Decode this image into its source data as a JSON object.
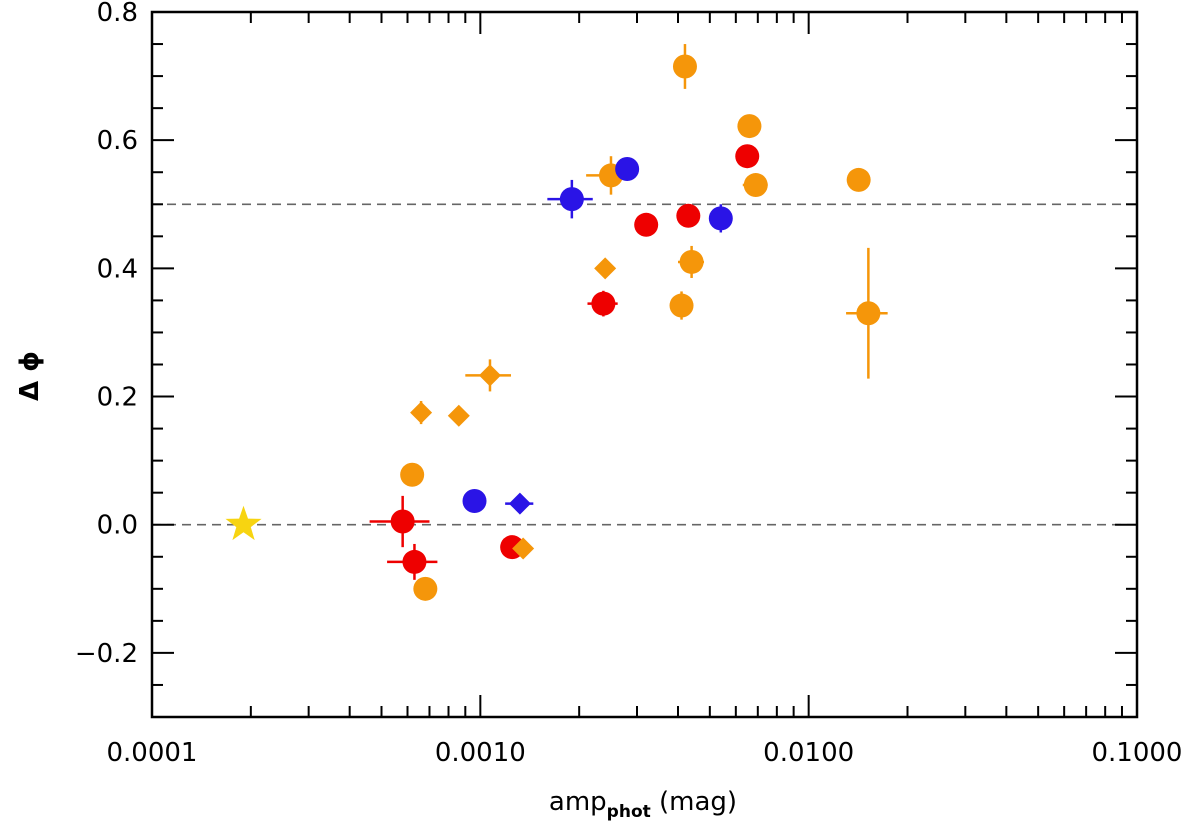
{
  "chart_data": {
    "type": "scatter",
    "xscale": "log",
    "xlim": [
      0.0001,
      0.1
    ],
    "ylim": [
      -0.3,
      0.8
    ],
    "xlabel_main": "amp",
    "xlabel_sub": "phot",
    "xlabel_unit": " (mag)",
    "ylabel": "Δ ϕ",
    "x_ticks": [
      {
        "value": 0.0001,
        "label": "0.0001"
      },
      {
        "value": 0.001,
        "label": "0.0010"
      },
      {
        "value": 0.01,
        "label": "0.0100"
      },
      {
        "value": 0.1,
        "label": "0.1000"
      }
    ],
    "y_ticks": [
      {
        "value": -0.2,
        "label": "−0.2"
      },
      {
        "value": 0.0,
        "label": "0.0"
      },
      {
        "value": 0.2,
        "label": "0.2"
      },
      {
        "value": 0.4,
        "label": "0.4"
      },
      {
        "value": 0.6,
        "label": "0.6"
      },
      {
        "value": 0.8,
        "label": "0.8"
      }
    ],
    "reference_lines": [
      0.0,
      0.5
    ],
    "colors": {
      "red": "#ee0000",
      "orange": "#f5960a",
      "blue": "#2a14e6",
      "star": "#f7d411",
      "refline": "#666666",
      "axis": "#000000"
    },
    "series": [
      {
        "name": "red-circles",
        "color": "red",
        "marker": "circle",
        "points": [
          {
            "x": 0.00058,
            "y": 0.005,
            "xerr": 0.00012,
            "yerr": 0.04
          },
          {
            "x": 0.00063,
            "y": -0.058,
            "xerr": 0.00011,
            "yerr": 0.028
          },
          {
            "x": 0.00125,
            "y": -0.035,
            "xerr": 5e-05,
            "yerr": 0.0
          },
          {
            "x": 0.00237,
            "y": 0.345,
            "xerr": 0.00025,
            "yerr": 0.02
          },
          {
            "x": 0.0032,
            "y": 0.468,
            "xerr": 0.0002,
            "yerr": 0.0
          },
          {
            "x": 0.0043,
            "y": 0.482,
            "xerr": 0.0002,
            "yerr": 0.0
          },
          {
            "x": 0.0065,
            "y": 0.575,
            "xerr": 0.0002,
            "yerr": 0.015
          }
        ]
      },
      {
        "name": "orange-circles",
        "color": "orange",
        "marker": "circle",
        "points": [
          {
            "x": 0.00062,
            "y": 0.078,
            "xerr": 0.0,
            "yerr": 0.0
          },
          {
            "x": 0.00068,
            "y": -0.1,
            "xerr": 0.0,
            "yerr": 0.0
          },
          {
            "x": 0.0025,
            "y": 0.545,
            "xerr": 0.0004,
            "yerr": 0.03
          },
          {
            "x": 0.0041,
            "y": 0.342,
            "xerr": 0.0,
            "yerr": 0.022
          },
          {
            "x": 0.0042,
            "y": 0.715,
            "xerr": 0.0,
            "yerr": 0.035
          },
          {
            "x": 0.0044,
            "y": 0.41,
            "xerr": 0.0004,
            "yerr": 0.025
          },
          {
            "x": 0.0066,
            "y": 0.622,
            "xerr": 0.0,
            "yerr": 0.0
          },
          {
            "x": 0.0069,
            "y": 0.53,
            "xerr": 0.0006,
            "yerr": 0.0
          },
          {
            "x": 0.0142,
            "y": 0.538,
            "xerr": 0.0,
            "yerr": 0.0
          },
          {
            "x": 0.0152,
            "y": 0.33,
            "xerr": 0.0022,
            "yerr": 0.102
          }
        ]
      },
      {
        "name": "orange-diamonds",
        "color": "orange",
        "marker": "diamond",
        "points": [
          {
            "x": 0.00066,
            "y": 0.175,
            "xerr": 0.0,
            "yerr": 0.018
          },
          {
            "x": 0.00086,
            "y": 0.17,
            "xerr": 0.0,
            "yerr": 0.0
          },
          {
            "x": 0.00107,
            "y": 0.233,
            "xerr": 0.00017,
            "yerr": 0.025
          },
          {
            "x": 0.00135,
            "y": -0.037,
            "xerr": 0.0,
            "yerr": 0.0
          },
          {
            "x": 0.0024,
            "y": 0.4,
            "xerr": 0.0,
            "yerr": 0.0
          }
        ]
      },
      {
        "name": "blue-circles",
        "color": "blue",
        "marker": "circle",
        "points": [
          {
            "x": 0.00096,
            "y": 0.037,
            "xerr": 0.0,
            "yerr": 0.0
          },
          {
            "x": 0.0019,
            "y": 0.508,
            "xerr": 0.0003,
            "yerr": 0.03
          },
          {
            "x": 0.0028,
            "y": 0.555,
            "xerr": 0.0002,
            "yerr": 0.0
          },
          {
            "x": 0.0054,
            "y": 0.478,
            "xerr": 0.0,
            "yerr": 0.022
          }
        ]
      },
      {
        "name": "blue-diamonds",
        "color": "blue",
        "marker": "diamond",
        "points": [
          {
            "x": 0.00132,
            "y": 0.033,
            "xerr": 0.00013,
            "yerr": 0.0
          }
        ]
      },
      {
        "name": "sun-star",
        "color": "star",
        "marker": "star",
        "points": [
          {
            "x": 0.00019,
            "y": 0.0,
            "xerr": 0.0,
            "yerr": 0.0
          }
        ]
      }
    ]
  }
}
